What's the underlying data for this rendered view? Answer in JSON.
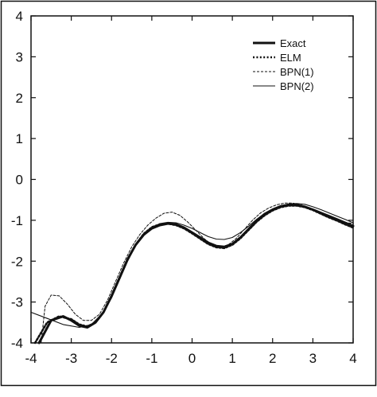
{
  "chart_data": {
    "type": "line",
    "title": "",
    "xlabel": "",
    "ylabel": "",
    "xlim": [
      -4,
      4
    ],
    "ylim": [
      -4,
      4
    ],
    "xticks": [
      -4,
      -3,
      -2,
      -1,
      0,
      1,
      2,
      3,
      4
    ],
    "yticks": [
      -4,
      -3,
      -2,
      -1,
      0,
      1,
      2,
      3,
      4
    ],
    "grid": false,
    "legend_position": "top-right",
    "series": [
      {
        "name": "Exact",
        "style": "solid-thick",
        "color": "#111111",
        "points": [
          [
            -3.8,
            -4.0
          ],
          [
            -3.5,
            -3.45
          ],
          [
            -3.2,
            -3.35
          ],
          [
            -3.0,
            -3.45
          ],
          [
            -2.8,
            -3.58
          ],
          [
            -2.6,
            -3.62
          ],
          [
            -2.4,
            -3.5
          ],
          [
            -2.2,
            -3.25
          ],
          [
            -2.0,
            -2.85
          ],
          [
            -1.8,
            -2.4
          ],
          [
            -1.6,
            -1.95
          ],
          [
            -1.4,
            -1.6
          ],
          [
            -1.2,
            -1.35
          ],
          [
            -1.0,
            -1.2
          ],
          [
            -0.8,
            -1.12
          ],
          [
            -0.6,
            -1.08
          ],
          [
            -0.4,
            -1.1
          ],
          [
            -0.2,
            -1.18
          ],
          [
            0.0,
            -1.3
          ],
          [
            0.2,
            -1.42
          ],
          [
            0.4,
            -1.55
          ],
          [
            0.6,
            -1.63
          ],
          [
            0.8,
            -1.65
          ],
          [
            1.0,
            -1.58
          ],
          [
            1.2,
            -1.42
          ],
          [
            1.4,
            -1.22
          ],
          [
            1.6,
            -1.02
          ],
          [
            1.8,
            -0.85
          ],
          [
            2.0,
            -0.74
          ],
          [
            2.2,
            -0.66
          ],
          [
            2.4,
            -0.63
          ],
          [
            2.6,
            -0.63
          ],
          [
            2.8,
            -0.67
          ],
          [
            3.0,
            -0.74
          ],
          [
            3.2,
            -0.82
          ],
          [
            3.4,
            -0.9
          ],
          [
            3.6,
            -0.98
          ],
          [
            3.8,
            -1.06
          ],
          [
            4.0,
            -1.14
          ]
        ]
      },
      {
        "name": "ELM",
        "style": "dotted",
        "color": "#111111",
        "points": [
          [
            -3.9,
            -4.0
          ],
          [
            -3.6,
            -3.5
          ],
          [
            -3.3,
            -3.35
          ],
          [
            -3.0,
            -3.42
          ],
          [
            -2.8,
            -3.55
          ],
          [
            -2.6,
            -3.6
          ],
          [
            -2.4,
            -3.5
          ],
          [
            -2.2,
            -3.25
          ],
          [
            -2.0,
            -2.85
          ],
          [
            -1.8,
            -2.4
          ],
          [
            -1.6,
            -1.95
          ],
          [
            -1.4,
            -1.6
          ],
          [
            -1.2,
            -1.33
          ],
          [
            -1.0,
            -1.17
          ],
          [
            -0.8,
            -1.1
          ],
          [
            -0.6,
            -1.08
          ],
          [
            -0.4,
            -1.12
          ],
          [
            -0.2,
            -1.2
          ],
          [
            0.0,
            -1.32
          ],
          [
            0.2,
            -1.45
          ],
          [
            0.4,
            -1.58
          ],
          [
            0.6,
            -1.66
          ],
          [
            0.8,
            -1.68
          ],
          [
            1.0,
            -1.6
          ],
          [
            1.2,
            -1.44
          ],
          [
            1.4,
            -1.24
          ],
          [
            1.6,
            -1.04
          ],
          [
            1.8,
            -0.88
          ],
          [
            2.0,
            -0.76
          ],
          [
            2.2,
            -0.68
          ],
          [
            2.4,
            -0.64
          ],
          [
            2.6,
            -0.64
          ],
          [
            2.8,
            -0.68
          ],
          [
            3.0,
            -0.75
          ],
          [
            3.2,
            -0.84
          ],
          [
            3.4,
            -0.93
          ],
          [
            3.6,
            -1.01
          ],
          [
            3.8,
            -1.1
          ],
          [
            4.0,
            -1.18
          ]
        ]
      },
      {
        "name": "BPN(1)",
        "style": "dashed-thin",
        "color": "#111111",
        "points": [
          [
            -3.75,
            -4.0
          ],
          [
            -3.65,
            -3.1
          ],
          [
            -3.5,
            -2.83
          ],
          [
            -3.3,
            -2.85
          ],
          [
            -3.1,
            -3.05
          ],
          [
            -2.9,
            -3.3
          ],
          [
            -2.7,
            -3.45
          ],
          [
            -2.5,
            -3.45
          ],
          [
            -2.3,
            -3.3
          ],
          [
            -2.1,
            -2.95
          ],
          [
            -1.9,
            -2.5
          ],
          [
            -1.7,
            -2.05
          ],
          [
            -1.5,
            -1.65
          ],
          [
            -1.3,
            -1.35
          ],
          [
            -1.1,
            -1.12
          ],
          [
            -0.9,
            -0.95
          ],
          [
            -0.7,
            -0.83
          ],
          [
            -0.5,
            -0.8
          ],
          [
            -0.3,
            -0.88
          ],
          [
            -0.1,
            -1.05
          ],
          [
            0.1,
            -1.25
          ],
          [
            0.3,
            -1.45
          ],
          [
            0.5,
            -1.6
          ],
          [
            0.7,
            -1.66
          ],
          [
            0.9,
            -1.6
          ],
          [
            1.1,
            -1.44
          ],
          [
            1.3,
            -1.22
          ],
          [
            1.5,
            -1.0
          ],
          [
            1.7,
            -0.82
          ],
          [
            1.9,
            -0.7
          ],
          [
            2.1,
            -0.62
          ],
          [
            2.3,
            -0.58
          ],
          [
            2.5,
            -0.58
          ],
          [
            2.7,
            -0.62
          ],
          [
            2.9,
            -0.7
          ],
          [
            3.1,
            -0.8
          ],
          [
            3.3,
            -0.9
          ],
          [
            3.5,
            -0.98
          ],
          [
            3.7,
            -1.04
          ],
          [
            4.0,
            -1.08
          ]
        ]
      },
      {
        "name": "BPN(2)",
        "style": "solid-thin",
        "color": "#111111",
        "points": [
          [
            -4.0,
            -3.25
          ],
          [
            -3.6,
            -3.4
          ],
          [
            -3.2,
            -3.55
          ],
          [
            -2.8,
            -3.62
          ],
          [
            -2.5,
            -3.55
          ],
          [
            -2.2,
            -3.25
          ],
          [
            -2.0,
            -2.9
          ],
          [
            -1.8,
            -2.45
          ],
          [
            -1.6,
            -2.0
          ],
          [
            -1.4,
            -1.62
          ],
          [
            -1.2,
            -1.35
          ],
          [
            -1.0,
            -1.18
          ],
          [
            -0.8,
            -1.08
          ],
          [
            -0.6,
            -1.05
          ],
          [
            -0.4,
            -1.06
          ],
          [
            -0.2,
            -1.12
          ],
          [
            0.0,
            -1.2
          ],
          [
            0.2,
            -1.3
          ],
          [
            0.4,
            -1.4
          ],
          [
            0.6,
            -1.46
          ],
          [
            0.8,
            -1.47
          ],
          [
            1.0,
            -1.42
          ],
          [
            1.2,
            -1.3
          ],
          [
            1.4,
            -1.15
          ],
          [
            1.6,
            -0.98
          ],
          [
            1.8,
            -0.83
          ],
          [
            2.0,
            -0.72
          ],
          [
            2.2,
            -0.64
          ],
          [
            2.4,
            -0.6
          ],
          [
            2.6,
            -0.59
          ],
          [
            2.8,
            -0.61
          ],
          [
            3.0,
            -0.67
          ],
          [
            3.2,
            -0.74
          ],
          [
            3.4,
            -0.82
          ],
          [
            3.6,
            -0.9
          ],
          [
            3.8,
            -0.98
          ],
          [
            4.0,
            -1.06
          ]
        ]
      }
    ]
  }
}
